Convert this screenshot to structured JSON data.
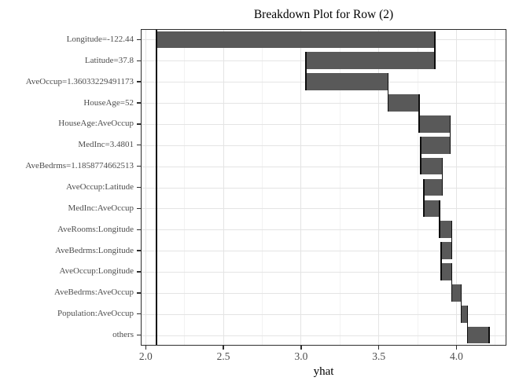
{
  "chart_data": {
    "type": "bar",
    "subtype": "horizontal-waterfall-breakdown",
    "title": "Breakdown Plot for Row (2)",
    "xlabel": "yhat",
    "ylabel": "",
    "legend_position": "none",
    "grid": true,
    "categories": [
      "Longitude=-122.44",
      "Latitude=37.8",
      "AveOccup=1.36033229491173",
      "HouseAge=52",
      "HouseAge:AveOccup",
      "MedInc=3.4801",
      "AveBedrms=1.1858774662513",
      "AveOccup:Latitude",
      "MedInc:AveOccup",
      "AveRooms:Longitude",
      "AveBedrms:Longitude",
      "AveOccup:Longitude",
      "AveBedrms:AveOccup",
      "Population:AveOccup",
      "others"
    ],
    "intercept": 2.07,
    "cumulative": [
      2.07,
      3.86,
      3.03,
      3.56,
      3.76,
      3.96,
      3.77,
      3.91,
      3.79,
      3.89,
      3.97,
      3.9,
      3.97,
      4.03,
      4.07,
      4.21
    ],
    "contributions": [
      1.79,
      -0.83,
      0.53,
      0.2,
      0.2,
      -0.19,
      0.14,
      -0.12,
      0.1,
      0.08,
      -0.07,
      0.07,
      0.06,
      0.04,
      0.14
    ],
    "final_prediction": 4.21,
    "xlim": [
      1.968,
      4.319
    ],
    "x_major_ticks": [
      2.0,
      2.5,
      3.0,
      3.5,
      4.0
    ],
    "x_tick_labels": [
      "2.0",
      "2.5",
      "3.0",
      "3.5",
      "4.0"
    ],
    "x_minor_ticks": [
      2.25,
      2.75,
      3.25,
      3.75,
      4.25
    ],
    "colors": {
      "bar": "#595959",
      "connector": "#0d0d0d",
      "intercept_line": "#0d0d0d",
      "grid_major": "#e4e4e4",
      "grid_minor": "#f2f2f2",
      "panel_border": "#2e2e2e",
      "tick": "#2e2e2e",
      "axis_text": "#4d4d4d",
      "title_text": "#000000",
      "background": "#ffffff"
    }
  }
}
